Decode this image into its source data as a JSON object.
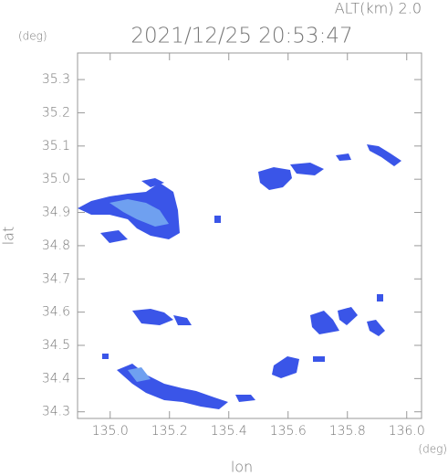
{
  "chart_data": {
    "type": "map",
    "title": "2021/12/25 20:53:47",
    "subtitle": "ALT(km) 2.0",
    "xlabel": "lon",
    "ylabel": "lat",
    "xunit": "(deg)",
    "yunit": "(deg)",
    "xlim": [
      134.89,
      136.05
    ],
    "ylim": [
      34.28,
      35.38
    ],
    "xticks": [
      {
        "value": 135.0,
        "label": "135.0"
      },
      135.2,
      135.4,
      135.6,
      135.8,
      {
        "value": 136.0,
        "label": "136.0"
      }
    ],
    "yticks": [
      34.3,
      34.4,
      34.5,
      34.6,
      34.7,
      34.8,
      34.9,
      {
        "value": 35.0,
        "label": "35.0"
      },
      35.1,
      35.2,
      35.3
    ],
    "color": "#3a55e8"
  }
}
